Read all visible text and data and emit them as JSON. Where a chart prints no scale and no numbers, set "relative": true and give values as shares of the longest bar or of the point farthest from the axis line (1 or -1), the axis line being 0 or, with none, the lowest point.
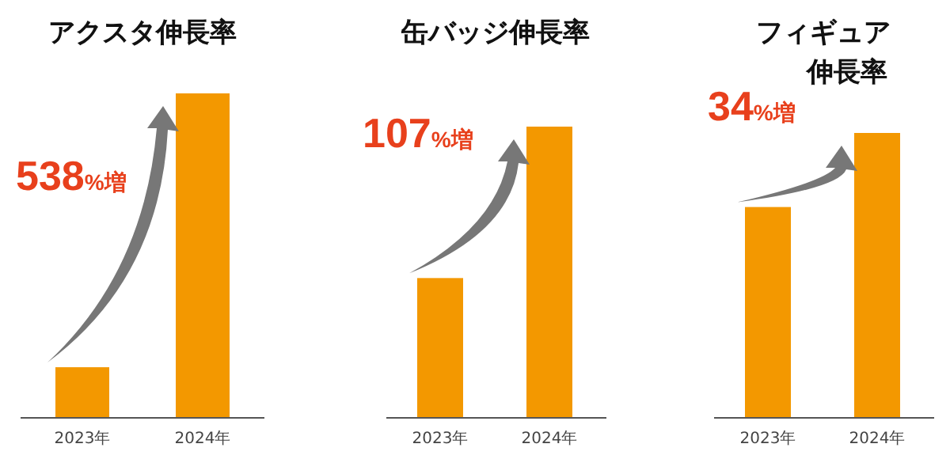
{
  "chart_data": [
    {
      "type": "bar",
      "title": "アクスタ伸長率",
      "categories": [
        "2023年",
        "2024年"
      ],
      "values": [
        0.156,
        1
      ],
      "color": "#f39800",
      "relative": true,
      "annotations": [
        "538%増"
      ]
    },
    {
      "type": "bar",
      "title": "缶バッジ伸長率",
      "categories": [
        "2023年",
        "2024年"
      ],
      "values": [
        0.48,
        1
      ],
      "color": "#f39800",
      "relative": true,
      "annotations": [
        "107%増"
      ]
    },
    {
      "type": "bar",
      "title": "フィギュア伸長率",
      "categories": [
        "2023年",
        "2024年"
      ],
      "values": [
        0.74,
        1
      ],
      "color": "#f39800",
      "relative": true,
      "annotations": [
        "34%増"
      ]
    }
  ]
}
